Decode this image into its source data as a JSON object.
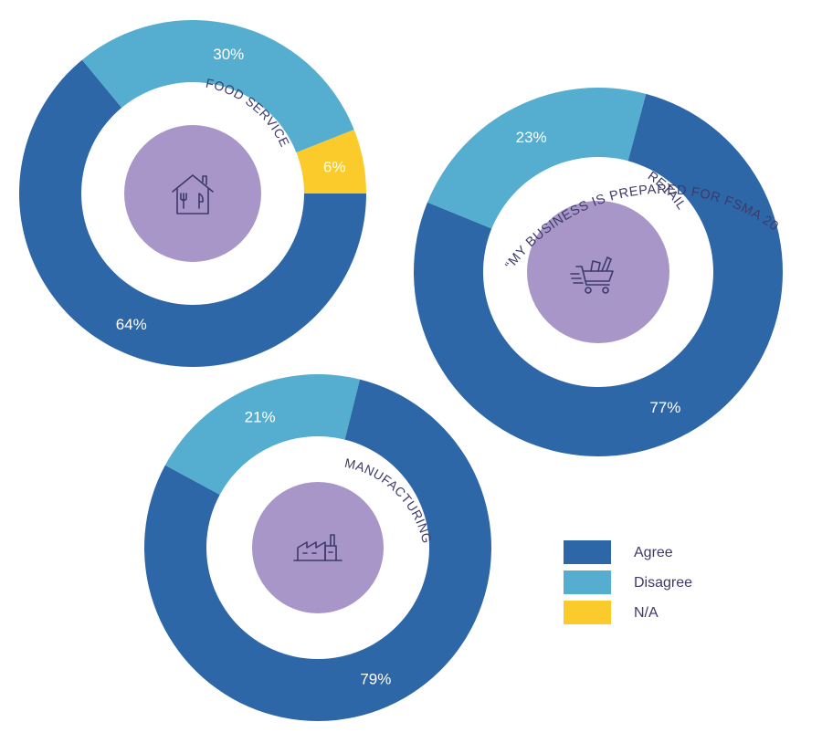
{
  "title": "“MY BUSINESS IS PREPARED FOR FSMA 204”",
  "colors": {
    "agree": "#2e67a7",
    "disagree": "#55aecf",
    "na": "#fbcb2b",
    "center": "#a996c8",
    "text": "#3d3a6b"
  },
  "legend": [
    {
      "key": "agree",
      "label": "Agree"
    },
    {
      "key": "disagree",
      "label": "Disagree"
    },
    {
      "key": "na",
      "label": "N/A"
    }
  ],
  "chart_data": [
    {
      "type": "pie",
      "title": "FOOD SERVICE",
      "icon": "house-utensils-icon",
      "categories": [
        "Agree",
        "Disagree",
        "N/A"
      ],
      "values": [
        64,
        30,
        6
      ],
      "labels": [
        "64%",
        "30%",
        "6%"
      ]
    },
    {
      "type": "pie",
      "title": "RETAIL",
      "icon": "shopping-cart-icon",
      "categories": [
        "Agree",
        "Disagree"
      ],
      "values": [
        77,
        23
      ],
      "labels": [
        "77%",
        "23%"
      ]
    },
    {
      "type": "pie",
      "title": "MANUFACTURING",
      "icon": "factory-icon",
      "categories": [
        "Agree",
        "Disagree"
      ],
      "values": [
        79,
        21
      ],
      "labels": [
        "79%",
        "21%"
      ]
    }
  ]
}
